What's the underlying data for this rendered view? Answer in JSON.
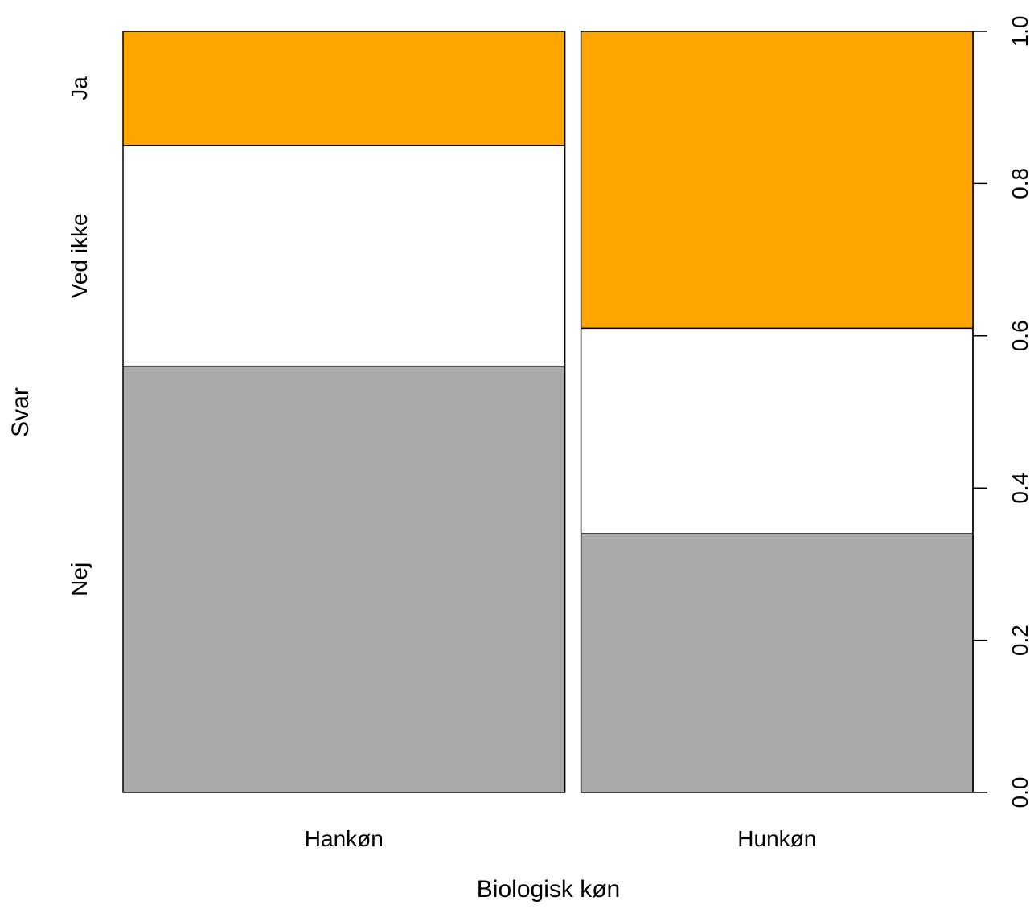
{
  "chart_data": {
    "type": "bar",
    "subtype": "stacked-proportional (spineplot)",
    "xlabel": "Biologisk køn",
    "ylabel": "Svar",
    "categories": [
      "Hankøn",
      "Hunkøn"
    ],
    "category_widths": [
      0.53,
      0.47
    ],
    "series": [
      {
        "name": "Nej",
        "color": "#AAAAAA",
        "values": [
          0.56,
          0.34
        ]
      },
      {
        "name": "Ved ikke",
        "color": "#FFFFFF",
        "values": [
          0.29,
          0.27
        ]
      },
      {
        "name": "Ja",
        "color": "#FFA500",
        "values": [
          0.15,
          0.39
        ]
      }
    ],
    "left_axis_labels": [
      "Nej",
      "Ved ikke",
      "Ja"
    ],
    "right_axis": {
      "ylim": [
        0,
        1
      ],
      "ticks": [
        "0.0",
        "0.2",
        "0.4",
        "0.6",
        "0.8",
        "1.0"
      ]
    },
    "grid": false,
    "legend": "none"
  }
}
